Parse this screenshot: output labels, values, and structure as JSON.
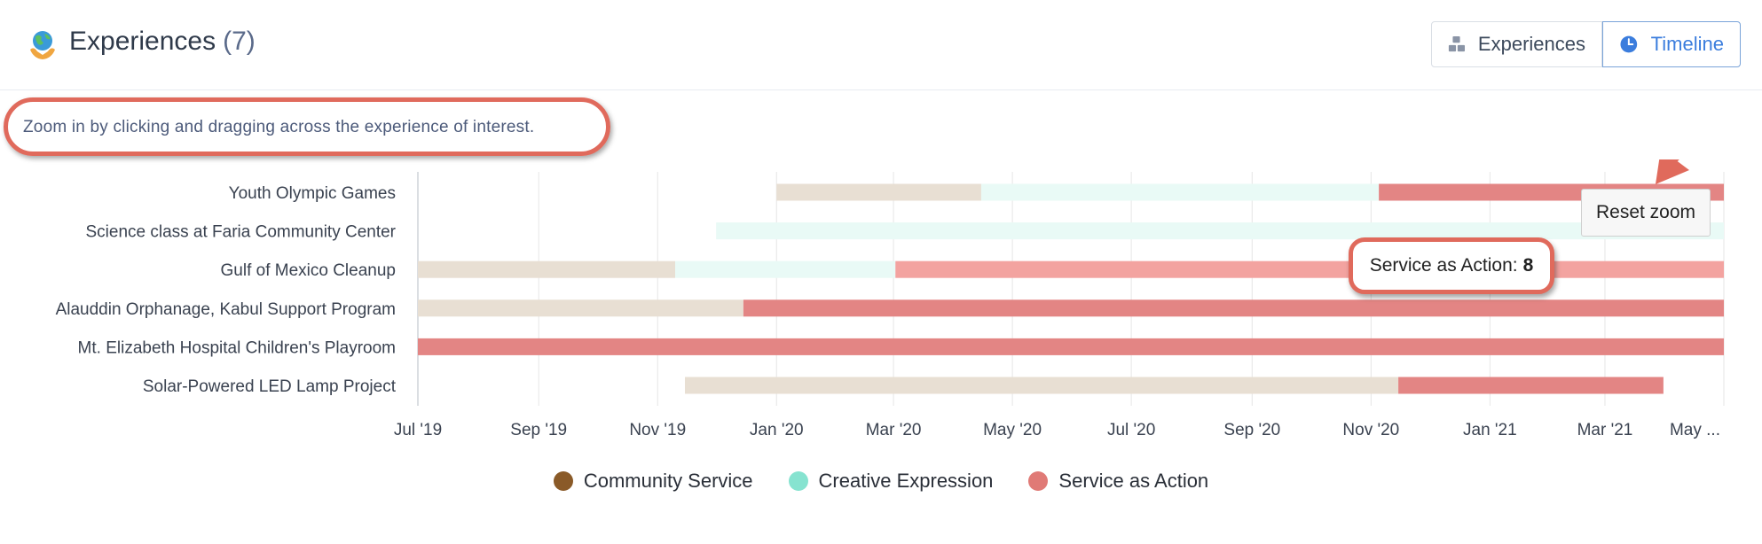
{
  "header": {
    "title": "Experiences",
    "count": "(7)",
    "icon": "globe-icon"
  },
  "view_switch": {
    "experiences_label": "Experiences",
    "timeline_label": "Timeline",
    "active": "Timeline"
  },
  "hint": "Zoom in by clicking and dragging across the experience of interest.",
  "reset_zoom_label": "Reset zoom",
  "tooltip": {
    "label": "Service as Action:",
    "value": "8"
  },
  "colors": {
    "community_service": "#8a5a28",
    "creative_expression": "#86e3d0",
    "service_as_action": "#e07a76",
    "accent": "#3b7ddd",
    "highlight_ring": "#e06a5c"
  },
  "legend": [
    {
      "name": "Community Service",
      "color": "#8a5a28"
    },
    {
      "name": "Creative Expression",
      "color": "#86e3d0"
    },
    {
      "name": "Service as Action",
      "color": "#e07a76"
    }
  ],
  "chart_data": {
    "type": "timeline",
    "x_ticks": [
      "Jul '19",
      "Sep '19",
      "Nov '19",
      "Jan '20",
      "Mar '20",
      "May '20",
      "Jul '20",
      "Sep '20",
      "Nov '20",
      "Jan '21",
      "Mar '21",
      "May ..."
    ],
    "x_range": [
      "2019-07-01",
      "2021-05-01"
    ],
    "rows": [
      {
        "label": "Youth Olympic Games",
        "segments": [
          {
            "type": "Community Service",
            "start": "2020-01-01",
            "end": "2020-04-15"
          },
          {
            "type": "Creative Expression",
            "start": "2020-04-15",
            "end": "2020-11-05"
          },
          {
            "type": "Service as Action",
            "start": "2020-11-05",
            "end": "2021-05-01"
          }
        ]
      },
      {
        "label": "Science class at Faria Community Center",
        "segments": [
          {
            "type": "Creative Expression",
            "start": "2019-12-01",
            "end": "2021-05-01"
          }
        ]
      },
      {
        "label": "Gulf of Mexico Cleanup",
        "segments": [
          {
            "type": "Community Service",
            "start": "2019-07-01",
            "end": "2019-11-10"
          },
          {
            "type": "Creative Expression",
            "start": "2019-11-10",
            "end": "2020-03-02"
          },
          {
            "type": "Service as Action",
            "start": "2020-03-02",
            "end": "2021-05-01",
            "highlighted": true
          }
        ]
      },
      {
        "label": "Alauddin Orphanage, Kabul Support Program",
        "segments": [
          {
            "type": "Community Service",
            "start": "2019-07-01",
            "end": "2019-12-15"
          },
          {
            "type": "Service as Action",
            "start": "2019-12-15",
            "end": "2021-05-01"
          }
        ]
      },
      {
        "label": "Mt. Elizabeth Hospital Children's Playroom",
        "segments": [
          {
            "type": "Service as Action",
            "start": "2019-07-01",
            "end": "2021-05-01"
          }
        ]
      },
      {
        "label": "Solar-Powered LED Lamp Project",
        "segments": [
          {
            "type": "Community Service",
            "start": "2019-11-15",
            "end": "2020-11-15"
          },
          {
            "type": "Service as Action",
            "start": "2020-11-15",
            "end": "2021-03-31"
          }
        ]
      }
    ]
  }
}
